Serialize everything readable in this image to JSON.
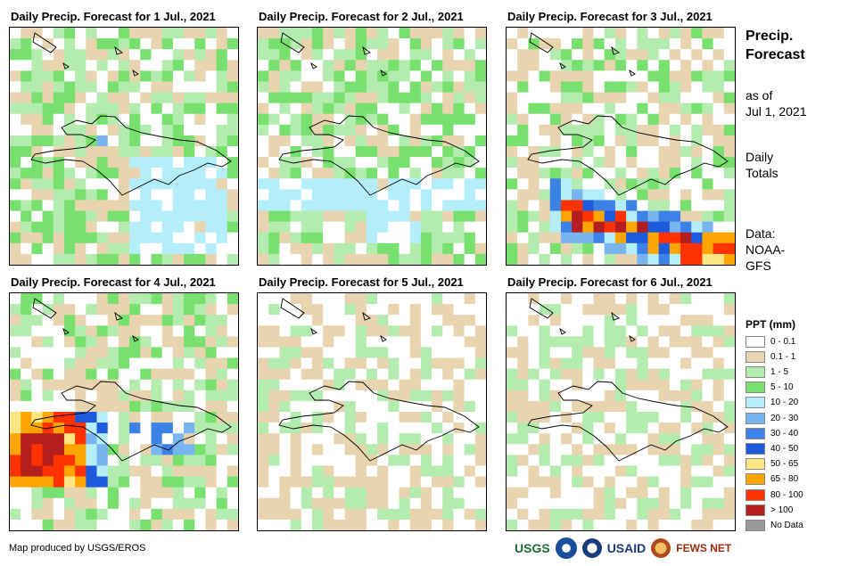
{
  "panels": [
    {
      "title": "Daily Precip. Forecast for 1 Jul., 2021",
      "seed": 11,
      "pattern": "day1"
    },
    {
      "title": "Daily Precip. Forecast for 2 Jul., 2021",
      "seed": 23,
      "pattern": "day2"
    },
    {
      "title": "Daily Precip. Forecast for 3 Jul., 2021",
      "seed": 37,
      "pattern": "day3"
    },
    {
      "title": "Daily Precip. Forecast for 4 Jul., 2021",
      "seed": 41,
      "pattern": "day4"
    },
    {
      "title": "Daily Precip. Forecast for 5 Jul., 2021",
      "seed": 53,
      "pattern": "day5"
    },
    {
      "title": "Daily Precip. Forecast for 6 Jul., 2021",
      "seed": 67,
      "pattern": "day6"
    }
  ],
  "side": {
    "title_line1": "Precip.",
    "title_line2": "Forecast",
    "asof_line1": "as of",
    "asof_line2": "Jul 1, 2021",
    "totals_line1": "Daily",
    "totals_line2": "Totals",
    "data_line1": "Data:",
    "data_line2": "NOAA-",
    "data_line3": "GFS"
  },
  "legend": {
    "title": "PPT (mm)",
    "items": [
      {
        "label": "0 - 0.1",
        "color": "#ffffff"
      },
      {
        "label": "0.1 - 1",
        "color": "#e8d5b0"
      },
      {
        "label": "1 - 5",
        "color": "#b4ecb0"
      },
      {
        "label": "5 - 10",
        "color": "#78e06e"
      },
      {
        "label": "10 - 20",
        "color": "#b4eefa"
      },
      {
        "label": "20 - 30",
        "color": "#78b4f0"
      },
      {
        "label": "30 - 40",
        "color": "#3c82e6"
      },
      {
        "label": "40 - 50",
        "color": "#1e5adc"
      },
      {
        "label": "50 - 65",
        "color": "#ffe682"
      },
      {
        "label": "65 - 80",
        "color": "#ffa500"
      },
      {
        "label": "80 - 100",
        "color": "#ff3200"
      },
      {
        "label": "> 100",
        "color": "#b41e1e"
      },
      {
        "label": "No Data",
        "color": "#999999"
      }
    ]
  },
  "footer": {
    "credit": "Map produced by USGS/EROS",
    "logo_usgs": "USGS",
    "logo_usaid": "USAID",
    "logo_fews": "FEWS NET"
  }
}
